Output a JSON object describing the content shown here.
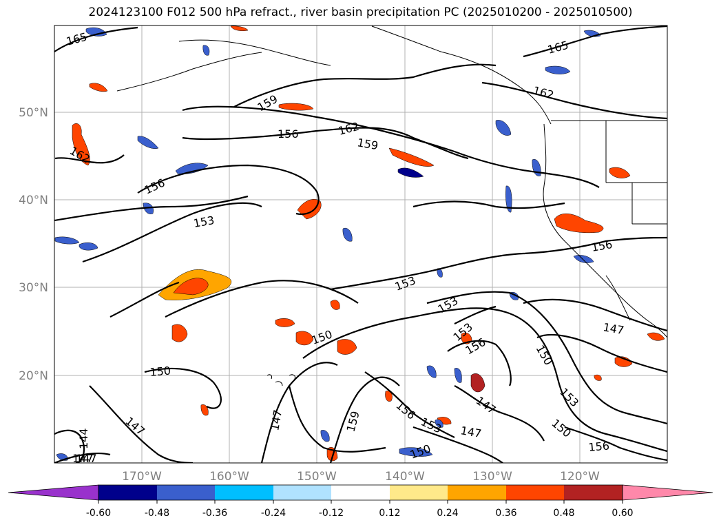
{
  "title": "2024123100 F012 500 hPa refract., river basin precipitation PC (2025010200 - 2025010500)",
  "map": {
    "lat_labels": [
      "50°N",
      "40°N",
      "30°N",
      "20°N"
    ],
    "lon_labels": [
      "170°W",
      "160°W",
      "150°W",
      "140°W",
      "130°W",
      "120°W"
    ],
    "contour_labels": [
      "165",
      "165",
      "162",
      "159",
      "162",
      "156",
      "159",
      "162",
      "156",
      "153",
      "156",
      "153",
      "153",
      "153",
      "156",
      "150",
      "150",
      "147",
      "147",
      "150",
      "147",
      "159",
      "156",
      "153",
      "147",
      "150",
      "153",
      "147",
      "150",
      "147",
      "144",
      "147",
      "156"
    ],
    "colors": {
      "contour": "#000000",
      "grid": "#aaaaaa",
      "coast": "#000000"
    }
  },
  "colorbar": {
    "ticks": [
      "-0.60",
      "-0.48",
      "-0.36",
      "-0.24",
      "-0.12",
      "0.12",
      "0.24",
      "0.36",
      "0.48",
      "0.60"
    ],
    "colors": [
      "#9932cc",
      "#00008b",
      "#3a5fcd",
      "#00bfff",
      "#b0e2ff",
      "#ffffff",
      "#ffe98a",
      "#ffa500",
      "#ff4500",
      "#b22222",
      "#ff88aa"
    ]
  }
}
